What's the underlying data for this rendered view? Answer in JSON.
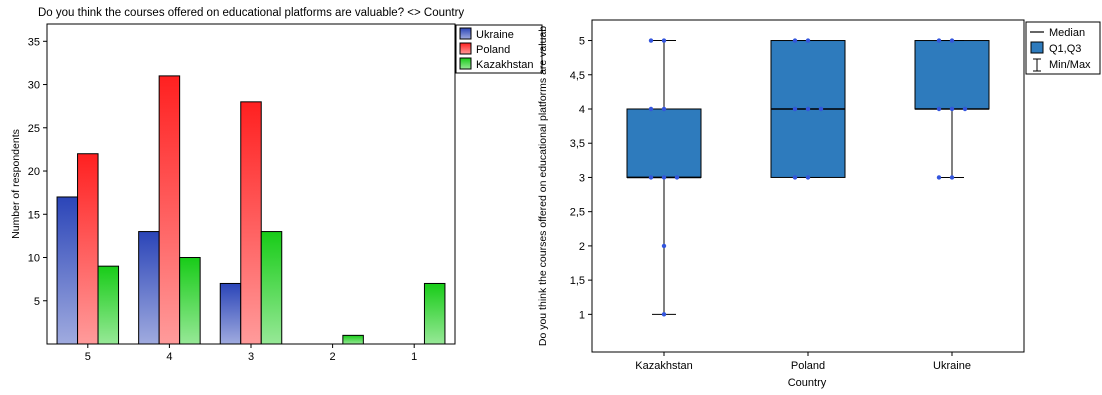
{
  "chart_data": [
    {
      "type": "bar",
      "title": "Do you think the courses offered on educational platforms are valuable? <> Country",
      "ylabel": "Number of respondents",
      "xlabel": "",
      "categories": [
        "5",
        "4",
        "3",
        "2",
        "1"
      ],
      "series": [
        {
          "name": "Ukraine",
          "values": [
            17,
            13,
            7,
            0,
            0
          ],
          "color": "#2b45b8"
        },
        {
          "name": "Poland",
          "values": [
            22,
            31,
            28,
            0,
            0
          ],
          "color": "#ff2020"
        },
        {
          "name": "Kazakhstan",
          "values": [
            9,
            10,
            13,
            1,
            7
          ],
          "color": "#18cc18"
        }
      ],
      "ylim": [
        0,
        37
      ],
      "yticks": [
        "5",
        "10",
        "15",
        "20",
        "25",
        "30",
        "35"
      ],
      "legend_position": "top-right",
      "grid": false
    },
    {
      "type": "box",
      "title": "",
      "ylabel": "Do you think the courses offered on educational platforms are valuab",
      "xlabel": "Country",
      "categories": [
        "Kazakhstan",
        "Poland",
        "Ukraine"
      ],
      "boxes": [
        {
          "category": "Kazakhstan",
          "min": 1,
          "q1": 3,
          "median": 3,
          "q3": 4,
          "max": 5,
          "points": [
            1,
            2,
            3,
            3,
            3,
            4,
            4,
            5,
            5
          ]
        },
        {
          "category": "Poland",
          "min": 3,
          "q1": 3,
          "median": 4,
          "q3": 5,
          "max": 5,
          "points": [
            3,
            3,
            4,
            4,
            4,
            5,
            5
          ]
        },
        {
          "category": "Ukraine",
          "min": 3,
          "q1": 4,
          "median": 4,
          "q3": 5,
          "max": 5,
          "points": [
            3,
            3,
            4,
            4,
            4,
            5,
            5
          ]
        }
      ],
      "ylim": [
        0.45,
        5.3
      ],
      "yticks": [
        "1",
        "1,5",
        "2",
        "2,5",
        "3",
        "3,5",
        "4",
        "4,5",
        "5"
      ],
      "legend": [
        "Median",
        "Q1,Q3",
        "Min/Max"
      ],
      "legend_position": "top-right",
      "grid": false,
      "box_color": "#2e7bbd",
      "point_color": "#3355dd"
    }
  ]
}
